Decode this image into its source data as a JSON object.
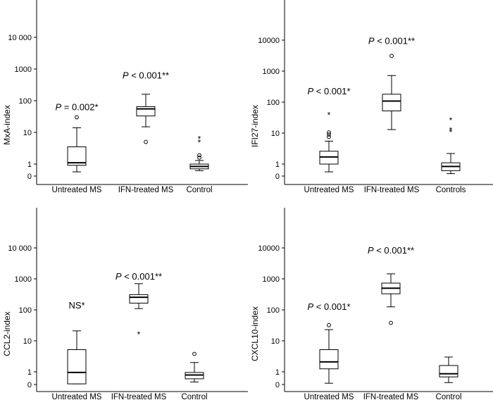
{
  "chart_data": [
    {
      "type": "box",
      "ylabel": "MxA-index",
      "ytick_labels": [
        "0",
        "1",
        "10",
        "100",
        "1000",
        "10 000"
      ],
      "yticks": [
        0,
        1,
        10,
        100,
        1000,
        10000
      ],
      "categories": [
        "Untreated MS",
        "IFN-treated MS",
        "Control"
      ],
      "boxes": [
        {
          "q1": 0.9,
          "median": 1.1,
          "q3": 3.5,
          "whisker_low": 0.35,
          "whisker_high": 14,
          "outliers": [
            {
              "value": 30,
              "marker": "o"
            }
          ]
        },
        {
          "q1": 33,
          "median": 55,
          "q3": 65,
          "whisker_low": 15,
          "whisker_high": 160,
          "outliers": [
            {
              "value": 5,
              "marker": "o"
            }
          ]
        },
        {
          "q1": 0.6,
          "median": 0.8,
          "q3": 1.0,
          "whisker_low": 0.45,
          "whisker_high": 1.3,
          "outliers": [
            {
              "value": 1.6,
              "marker": "o"
            },
            {
              "value": 1.9,
              "marker": "o"
            },
            {
              "value": 5.0,
              "marker": "*"
            },
            {
              "value": 6.5,
              "marker": "*"
            }
          ]
        }
      ],
      "annotations": [
        {
          "category": 0,
          "y": 50,
          "italic": "P",
          "text": " = 0.002*"
        },
        {
          "category": 1,
          "y": 500,
          "italic": "P",
          "text": " < 0.001**"
        }
      ]
    },
    {
      "type": "box",
      "ylabel": "IFI27-index",
      "ytick_labels": [
        "0",
        "1",
        "10",
        "100",
        "1000",
        "10000"
      ],
      "yticks": [
        0,
        1,
        10,
        100,
        1000,
        10000
      ],
      "categories": [
        "Untreated MS",
        "IFN-treated MS",
        "Controls"
      ],
      "boxes": [
        {
          "q1": 1.0,
          "median": 1.7,
          "q3": 2.6,
          "whisker_low": 0.35,
          "whisker_high": 5.5,
          "outliers": [
            {
              "value": 7.5,
              "marker": "o"
            },
            {
              "value": 9,
              "marker": "o"
            },
            {
              "value": 10.5,
              "marker": "o"
            },
            {
              "value": 40,
              "marker": "*"
            }
          ]
        },
        {
          "q1": 52,
          "median": 108,
          "q3": 180,
          "whisker_low": 13,
          "whisker_high": 720,
          "outliers": [
            {
              "value": 3100,
              "marker": "o"
            }
          ]
        },
        {
          "q1": 0.45,
          "median": 0.8,
          "q3": 1.1,
          "whisker_low": 0.2,
          "whisker_high": 2.2,
          "outliers": [
            {
              "value": 11,
              "marker": "*"
            },
            {
              "value": 13,
              "marker": "*"
            },
            {
              "value": 27,
              "marker": "*"
            }
          ]
        }
      ],
      "annotations": [
        {
          "category": 0,
          "y": 180,
          "italic": "P",
          "text": " < 0.001*"
        },
        {
          "category": 1,
          "y": 7500,
          "italic": "P",
          "text": " < 0.001**"
        }
      ]
    },
    {
      "type": "box",
      "ylabel": "CCL2-index",
      "ytick_labels": [
        "0",
        "1",
        "10",
        "100",
        "1000",
        "10 000"
      ],
      "yticks": [
        0,
        1,
        10,
        100,
        1000,
        10000
      ],
      "categories": [
        "Untreated MS",
        "IFN-treated MS",
        "Control"
      ],
      "boxes": [
        {
          "q1": 0.05,
          "median": 0.95,
          "q3": 5.2,
          "whisker_low": 0.05,
          "whisker_high": 21,
          "outliers": []
        },
        {
          "q1": 165,
          "median": 255,
          "q3": 310,
          "whisker_low": 110,
          "whisker_high": 700,
          "outliers": [
            {
              "value": 17,
              "marker": "*"
            }
          ]
        },
        {
          "q1": 0.45,
          "median": 0.75,
          "q3": 0.95,
          "whisker_low": 0.2,
          "whisker_high": 2.0,
          "outliers": [
            {
              "value": 3.8,
              "marker": "o"
            }
          ]
        }
      ],
      "annotations": [
        {
          "category": 0,
          "y": 110,
          "italic": "",
          "text": "NS*"
        },
        {
          "category": 1,
          "y": 950,
          "italic": "P",
          "text": " < 0.001**"
        }
      ]
    },
    {
      "type": "box",
      "ylabel": "CXCL10-index",
      "ytick_labels": [
        "0",
        "1",
        "10",
        "100",
        "1000",
        "10000"
      ],
      "yticks": [
        0,
        1,
        10,
        100,
        1000,
        10000
      ],
      "categories": [
        "Untreated MS",
        "IFN-treated MS",
        "Control"
      ],
      "boxes": [
        {
          "q1": 1.25,
          "median": 2.1,
          "q3": 5.2,
          "whisker_low": 0.1,
          "whisker_high": 23,
          "outliers": [
            {
              "value": 32,
              "marker": "o"
            }
          ]
        },
        {
          "q1": 330,
          "median": 500,
          "q3": 730,
          "whisker_low": 125,
          "whisker_high": 1450,
          "outliers": [
            {
              "value": 38,
              "marker": "o"
            }
          ]
        },
        {
          "q1": 0.6,
          "median": 0.85,
          "q3": 1.6,
          "whisker_low": 0.15,
          "whisker_high": 3.0,
          "outliers": []
        }
      ],
      "annotations": [
        {
          "category": 0,
          "y": 100,
          "italic": "P",
          "text": " < 0.001*"
        },
        {
          "category": 1,
          "y": 6500,
          "italic": "P",
          "text": " < 0.001**"
        }
      ]
    }
  ]
}
